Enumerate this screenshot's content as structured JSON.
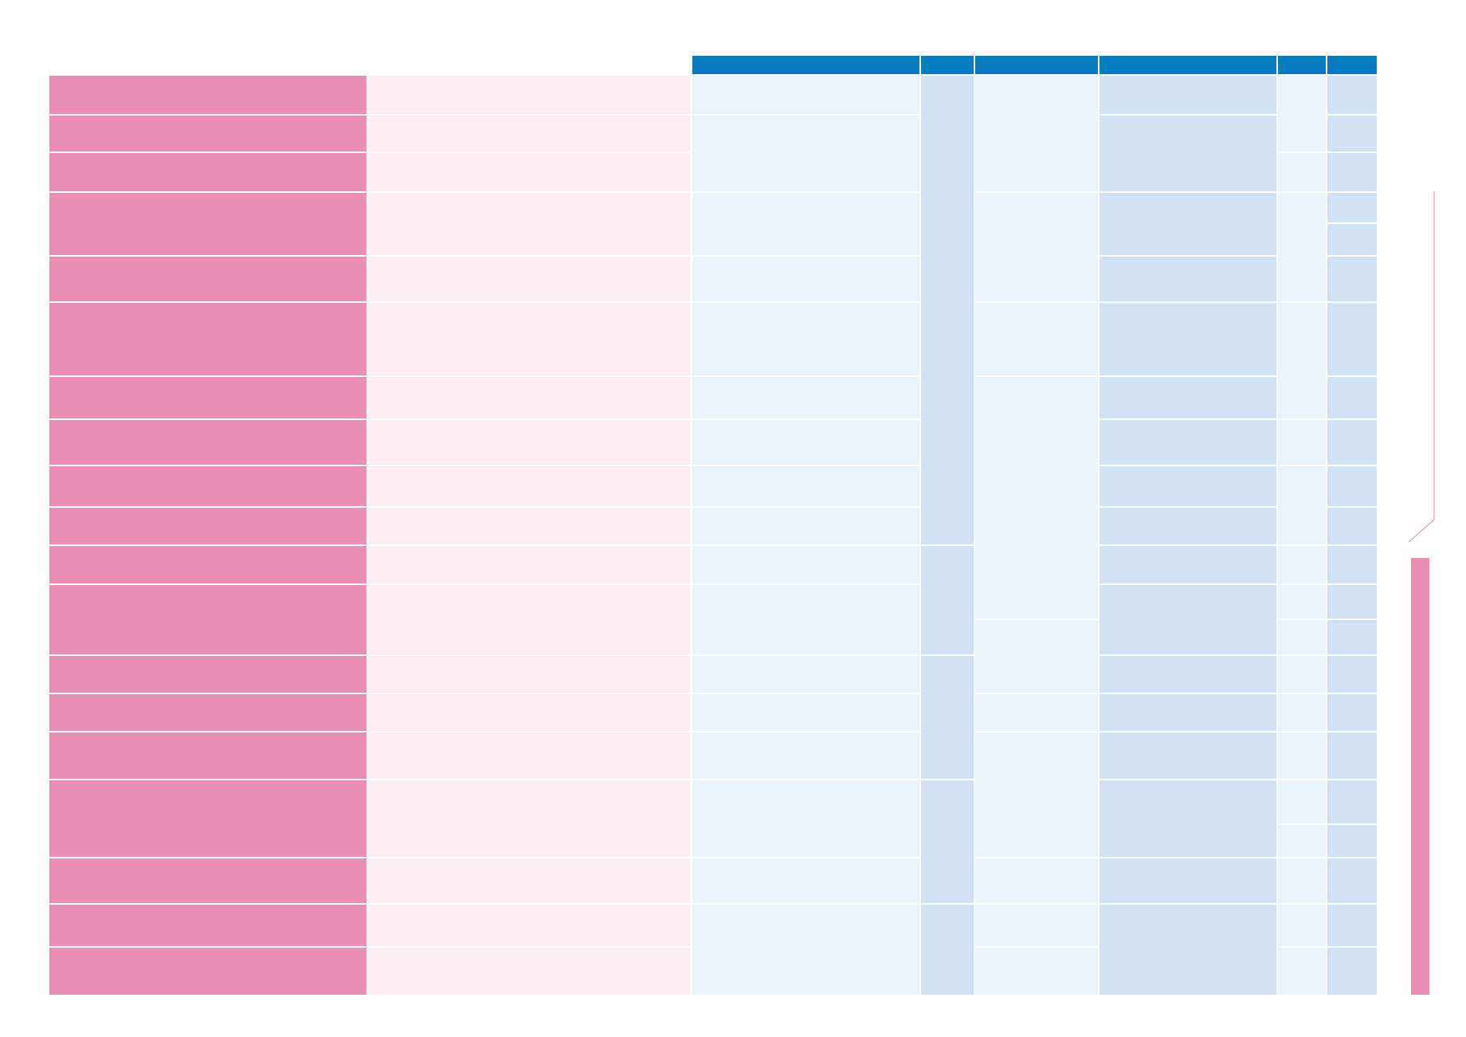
{
  "colors": {
    "header": "#0779c1",
    "row_label": "#ec8db6",
    "row_label_light": "#fcebf1",
    "cell_light": "#e8f3fc",
    "cell_medium": "#d0e2f4",
    "bracket": "#e3a0b8"
  },
  "table": {
    "header_columns": [
      "",
      "",
      "",
      "",
      "",
      ""
    ],
    "row_count": 19
  }
}
